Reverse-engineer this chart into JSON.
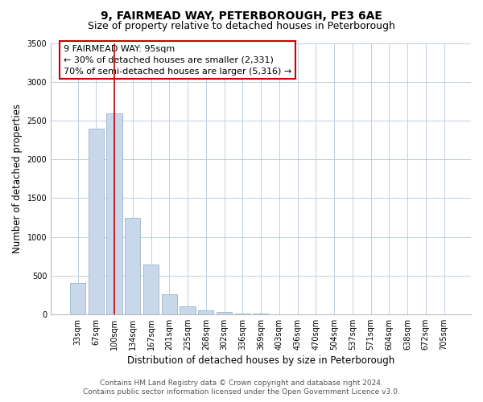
{
  "title": "9, FAIRMEAD WAY, PETERBOROUGH, PE3 6AE",
  "subtitle": "Size of property relative to detached houses in Peterborough",
  "xlabel": "Distribution of detached houses by size in Peterborough",
  "ylabel": "Number of detached properties",
  "bar_labels": [
    "33sqm",
    "67sqm",
    "100sqm",
    "134sqm",
    "167sqm",
    "201sqm",
    "235sqm",
    "268sqm",
    "302sqm",
    "336sqm",
    "369sqm",
    "403sqm",
    "436sqm",
    "470sqm",
    "504sqm",
    "537sqm",
    "571sqm",
    "604sqm",
    "638sqm",
    "672sqm",
    "705sqm"
  ],
  "bar_values": [
    400,
    2400,
    2600,
    1250,
    640,
    260,
    100,
    50,
    25,
    10,
    5,
    0,
    0,
    0,
    0,
    0,
    0,
    0,
    0,
    0,
    0
  ],
  "bar_color": "#c8d8ea",
  "bar_edge_color": "#9ab5cc",
  "vline_x": 2,
  "vline_color": "#cc0000",
  "ylim": [
    0,
    3500
  ],
  "yticks": [
    0,
    500,
    1000,
    1500,
    2000,
    2500,
    3000,
    3500
  ],
  "annotation_line1": "9 FAIRMEAD WAY: 95sqm",
  "annotation_line2": "← 30% of detached houses are smaller (2,331)",
  "annotation_line3": "70% of semi-detached houses are larger (5,316) →",
  "footer_line1": "Contains HM Land Registry data © Crown copyright and database right 2024.",
  "footer_line2": "Contains public sector information licensed under the Open Government Licence v3.0.",
  "bg_color": "#ffffff",
  "grid_color": "#c0d0e0",
  "title_fontsize": 10,
  "subtitle_fontsize": 9,
  "label_fontsize": 8.5,
  "tick_fontsize": 7,
  "annot_fontsize": 8,
  "footer_fontsize": 6.5
}
